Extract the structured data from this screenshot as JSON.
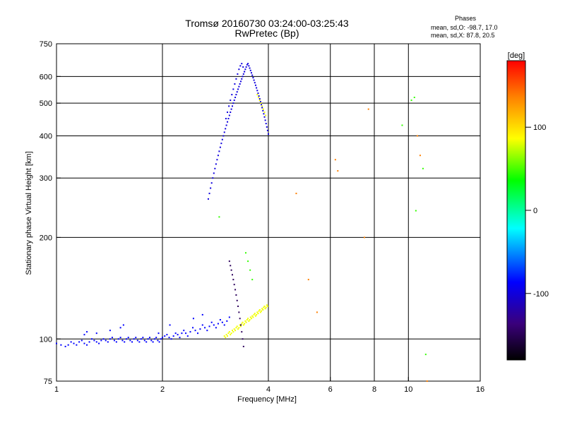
{
  "chart_data": {
    "type": "scatter",
    "title": "Tromsø 20160730 03:24:00-03:25:43",
    "subtitle": "RwPretec (Bp)",
    "xlabel": "Frequency [MHz]",
    "ylabel": "Stationary phase Virtual Height [km]",
    "x_scale": "log",
    "y_scale": "log",
    "xlim": [
      1,
      16
    ],
    "ylim": [
      75,
      750
    ],
    "x_ticks": [
      1,
      2,
      4,
      6,
      8,
      10,
      16
    ],
    "x_tick_labels": [
      "1",
      "2",
      "4",
      "6",
      "8",
      "10",
      "16"
    ],
    "y_ticks": [
      75,
      100,
      200,
      300,
      400,
      500,
      600,
      750
    ],
    "y_tick_labels": [
      "75",
      "100",
      "200",
      "300",
      "400",
      "500",
      "600",
      "750"
    ],
    "grid": true,
    "phase_info": {
      "title": "Phases",
      "line1": "mean, sd,O: -98.7, 17.0",
      "line2": "mean, sd,X:  87.8, 20.5"
    },
    "colorbar": {
      "label": "[deg]",
      "range": [
        -180,
        180
      ],
      "ticks": [
        100,
        0,
        -100
      ],
      "tick_labels": [
        "100",
        "0",
        "-100"
      ]
    },
    "clusters": [
      {
        "name": "",
        "phase": -100,
        "points": [
          [
            1.0,
            97
          ],
          [
            1.03,
            96
          ],
          [
            1.06,
            95
          ],
          [
            1.08,
            96
          ],
          [
            1.1,
            98
          ],
          [
            1.12,
            97
          ],
          [
            1.14,
            96
          ],
          [
            1.16,
            98
          ],
          [
            1.18,
            99
          ],
          [
            1.2,
            97
          ],
          [
            1.22,
            96
          ],
          [
            1.24,
            98
          ],
          [
            1.26,
            100
          ],
          [
            1.28,
            99
          ],
          [
            1.3,
            98
          ],
          [
            1.32,
            97
          ],
          [
            1.34,
            99
          ],
          [
            1.36,
            100
          ],
          [
            1.38,
            99
          ],
          [
            1.4,
            98
          ],
          [
            1.42,
            100
          ],
          [
            1.44,
            101
          ],
          [
            1.46,
            99
          ],
          [
            1.48,
            98
          ],
          [
            1.5,
            100
          ],
          [
            1.52,
            101
          ],
          [
            1.54,
            99
          ],
          [
            1.56,
            98
          ],
          [
            1.58,
            100
          ],
          [
            1.6,
            101
          ],
          [
            1.62,
            99
          ],
          [
            1.64,
            98
          ],
          [
            1.66,
            100
          ],
          [
            1.68,
            101
          ],
          [
            1.7,
            99
          ],
          [
            1.72,
            98
          ],
          [
            1.74,
            100
          ],
          [
            1.76,
            101
          ],
          [
            1.78,
            99
          ],
          [
            1.8,
            98
          ],
          [
            1.82,
            100
          ],
          [
            1.84,
            101
          ],
          [
            1.86,
            99
          ],
          [
            1.88,
            98
          ],
          [
            1.9,
            100
          ],
          [
            1.92,
            101
          ],
          [
            1.94,
            99
          ],
          [
            1.96,
            98
          ],
          [
            1.98,
            100
          ],
          [
            2.0,
            101
          ],
          [
            2.03,
            102
          ],
          [
            2.06,
            103
          ],
          [
            2.09,
            101
          ],
          [
            2.12,
            100
          ],
          [
            2.15,
            102
          ],
          [
            2.18,
            104
          ],
          [
            2.21,
            103
          ],
          [
            2.24,
            101
          ],
          [
            2.27,
            104
          ],
          [
            2.3,
            106
          ],
          [
            2.33,
            104
          ],
          [
            2.36,
            102
          ],
          [
            2.4,
            105
          ],
          [
            2.44,
            108
          ],
          [
            2.48,
            106
          ],
          [
            2.52,
            104
          ],
          [
            2.56,
            107
          ],
          [
            2.6,
            110
          ],
          [
            2.64,
            108
          ],
          [
            2.68,
            106
          ],
          [
            2.72,
            109
          ],
          [
            2.76,
            112
          ],
          [
            2.8,
            110
          ],
          [
            2.84,
            108
          ],
          [
            2.88,
            111
          ],
          [
            2.92,
            114
          ],
          [
            2.96,
            112
          ],
          [
            3.0,
            110
          ],
          [
            3.05,
            113
          ],
          [
            3.1,
            116
          ],
          [
            1.2,
            103
          ],
          [
            1.22,
            105
          ],
          [
            1.3,
            104
          ],
          [
            1.42,
            106
          ],
          [
            1.52,
            108
          ],
          [
            1.55,
            110
          ],
          [
            1.95,
            104
          ],
          [
            2.1,
            110
          ],
          [
            2.45,
            115
          ],
          [
            2.6,
            118
          ]
        ]
      },
      {
        "name": "",
        "phase": -110,
        "points": [
          [
            2.7,
            260
          ],
          [
            2.72,
            270
          ],
          [
            2.74,
            280
          ],
          [
            2.76,
            290
          ],
          [
            2.78,
            300
          ],
          [
            2.8,
            310
          ],
          [
            2.82,
            320
          ],
          [
            2.84,
            330
          ],
          [
            2.86,
            340
          ],
          [
            2.88,
            350
          ],
          [
            2.9,
            360
          ],
          [
            2.92,
            370
          ],
          [
            2.94,
            380
          ],
          [
            2.96,
            390
          ],
          [
            2.98,
            400
          ],
          [
            3.0,
            410
          ],
          [
            3.02,
            420
          ],
          [
            3.04,
            430
          ],
          [
            3.06,
            440
          ],
          [
            3.08,
            450
          ],
          [
            3.1,
            460
          ],
          [
            3.12,
            470
          ],
          [
            3.14,
            480
          ],
          [
            3.16,
            490
          ],
          [
            3.18,
            500
          ],
          [
            3.2,
            510
          ],
          [
            3.22,
            520
          ],
          [
            3.24,
            530
          ],
          [
            3.26,
            540
          ],
          [
            3.28,
            550
          ],
          [
            3.3,
            560
          ],
          [
            3.32,
            570
          ],
          [
            3.34,
            580
          ],
          [
            3.36,
            590
          ],
          [
            3.38,
            600
          ],
          [
            3.4,
            610
          ],
          [
            3.42,
            620
          ],
          [
            3.44,
            630
          ],
          [
            3.46,
            640
          ],
          [
            3.48,
            650
          ],
          [
            3.5,
            655
          ],
          [
            3.52,
            645
          ],
          [
            3.54,
            635
          ],
          [
            3.56,
            625
          ],
          [
            3.58,
            615
          ],
          [
            3.6,
            605
          ],
          [
            3.62,
            595
          ],
          [
            3.64,
            585
          ],
          [
            3.66,
            575
          ],
          [
            3.68,
            565
          ],
          [
            3.7,
            555
          ],
          [
            3.72,
            545
          ],
          [
            3.74,
            535
          ],
          [
            3.76,
            525
          ],
          [
            3.78,
            515
          ],
          [
            3.8,
            505
          ],
          [
            3.82,
            495
          ],
          [
            3.84,
            485
          ],
          [
            3.86,
            475
          ],
          [
            3.88,
            465
          ],
          [
            3.9,
            455
          ],
          [
            3.92,
            445
          ],
          [
            3.94,
            435
          ],
          [
            3.96,
            425
          ],
          [
            3.98,
            415
          ],
          [
            4.0,
            405
          ],
          [
            3.03,
            450
          ],
          [
            3.06,
            470
          ],
          [
            3.09,
            490
          ],
          [
            3.12,
            510
          ],
          [
            3.15,
            530
          ],
          [
            3.18,
            550
          ],
          [
            3.21,
            570
          ],
          [
            3.24,
            590
          ],
          [
            3.27,
            610
          ],
          [
            3.3,
            630
          ],
          [
            3.33,
            645
          ],
          [
            3.36,
            655
          ],
          [
            3.39,
            640
          ],
          [
            3.42,
            620
          ]
        ]
      },
      {
        "name": "",
        "phase": 95,
        "points": [
          [
            3.0,
            102
          ],
          [
            3.02,
            101
          ],
          [
            3.04,
            103
          ],
          [
            3.06,
            102
          ],
          [
            3.08,
            104
          ],
          [
            3.1,
            105
          ],
          [
            3.12,
            103
          ],
          [
            3.14,
            104
          ],
          [
            3.16,
            106
          ],
          [
            3.18,
            105
          ],
          [
            3.2,
            107
          ],
          [
            3.22,
            106
          ],
          [
            3.24,
            108
          ],
          [
            3.26,
            109
          ],
          [
            3.28,
            107
          ],
          [
            3.3,
            108
          ],
          [
            3.32,
            110
          ],
          [
            3.34,
            109
          ],
          [
            3.36,
            111
          ],
          [
            3.38,
            112
          ],
          [
            3.4,
            110
          ],
          [
            3.42,
            111
          ],
          [
            3.44,
            113
          ],
          [
            3.46,
            112
          ],
          [
            3.48,
            114
          ],
          [
            3.5,
            115
          ],
          [
            3.52,
            113
          ],
          [
            3.54,
            114
          ],
          [
            3.56,
            116
          ],
          [
            3.58,
            115
          ],
          [
            3.6,
            117
          ],
          [
            3.62,
            116
          ],
          [
            3.64,
            118
          ],
          [
            3.66,
            119
          ],
          [
            3.68,
            117
          ],
          [
            3.7,
            118
          ],
          [
            3.72,
            120
          ],
          [
            3.74,
            119
          ],
          [
            3.76,
            121
          ],
          [
            3.78,
            122
          ],
          [
            3.8,
            120
          ],
          [
            3.82,
            121
          ],
          [
            3.84,
            123
          ],
          [
            3.86,
            122
          ],
          [
            3.88,
            124
          ],
          [
            3.9,
            125
          ],
          [
            3.92,
            123
          ],
          [
            3.94,
            124
          ],
          [
            3.96,
            126
          ],
          [
            3.98,
            125
          ],
          [
            3.72,
            530
          ],
          [
            3.75,
            520
          ],
          [
            3.78,
            510
          ],
          [
            3.81,
            500
          ],
          [
            3.84,
            490
          ],
          [
            3.87,
            480
          ],
          [
            3.9,
            470
          ],
          [
            3.93,
            460
          ]
        ]
      },
      {
        "name": "",
        "phase": -150,
        "points": [
          [
            3.1,
            170
          ],
          [
            3.12,
            165
          ],
          [
            3.14,
            160
          ],
          [
            3.16,
            155
          ],
          [
            3.18,
            150
          ],
          [
            3.2,
            145
          ],
          [
            3.22,
            140
          ],
          [
            3.24,
            135
          ],
          [
            3.26,
            130
          ],
          [
            3.28,
            125
          ],
          [
            3.3,
            120
          ],
          [
            3.32,
            115
          ],
          [
            3.34,
            110
          ],
          [
            3.36,
            105
          ],
          [
            3.38,
            100
          ],
          [
            3.4,
            95
          ]
        ]
      },
      {
        "name": "",
        "phase": 20,
        "points": [
          [
            3.45,
            180
          ],
          [
            3.5,
            170
          ],
          [
            3.55,
            160
          ],
          [
            3.6,
            150
          ],
          [
            2.9,
            230
          ],
          [
            10.5,
            240
          ],
          [
            11.0,
            320
          ],
          [
            10.2,
            510
          ],
          [
            10.4,
            520
          ],
          [
            9.6,
            430
          ],
          [
            11.2,
            90
          ]
        ]
      },
      {
        "name": "",
        "phase": 140,
        "points": [
          [
            4.8,
            270
          ],
          [
            5.2,
            150
          ],
          [
            5.5,
            120
          ],
          [
            6.2,
            340
          ],
          [
            6.3,
            315
          ],
          [
            7.5,
            200
          ],
          [
            7.7,
            480
          ],
          [
            10.6,
            400
          ],
          [
            10.8,
            350
          ],
          [
            11.3,
            75
          ]
        ]
      }
    ]
  }
}
